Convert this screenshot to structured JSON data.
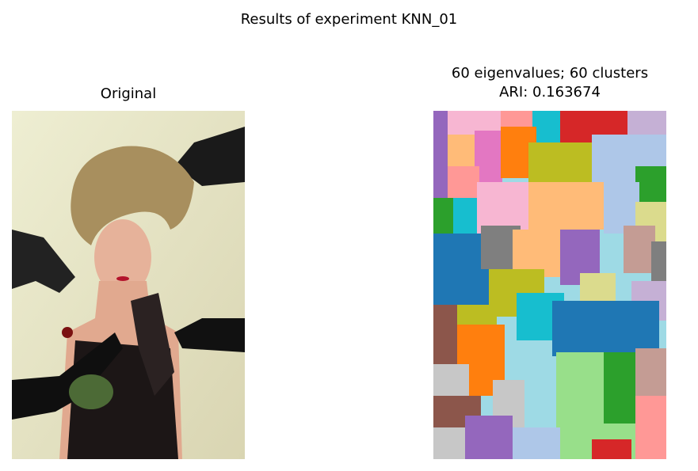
{
  "figure": {
    "suptitle": "Results of experiment KNN_01"
  },
  "panels": [
    {
      "title": "Original"
    },
    {
      "title_line1": "60 eigenvalues; 60 clusters",
      "title_line2": "ARI: 0.163674"
    }
  ],
  "colors": {
    "background_photo": "#e9e7c8",
    "hair": "#a88f5e",
    "skin": "#e6b29a",
    "glove": "#141414",
    "segment_palette": [
      "#1f77b4",
      "#aec7e8",
      "#ff7f0e",
      "#ffbb78",
      "#2ca02c",
      "#98df8a",
      "#d62728",
      "#ff9896",
      "#9467bd",
      "#c5b0d5",
      "#8c564b",
      "#c49c94",
      "#e377c2",
      "#f7b6d2",
      "#7f7f7f",
      "#c7c7c7",
      "#bcbd22",
      "#dbdb8d",
      "#17becf",
      "#9edae5"
    ]
  }
}
